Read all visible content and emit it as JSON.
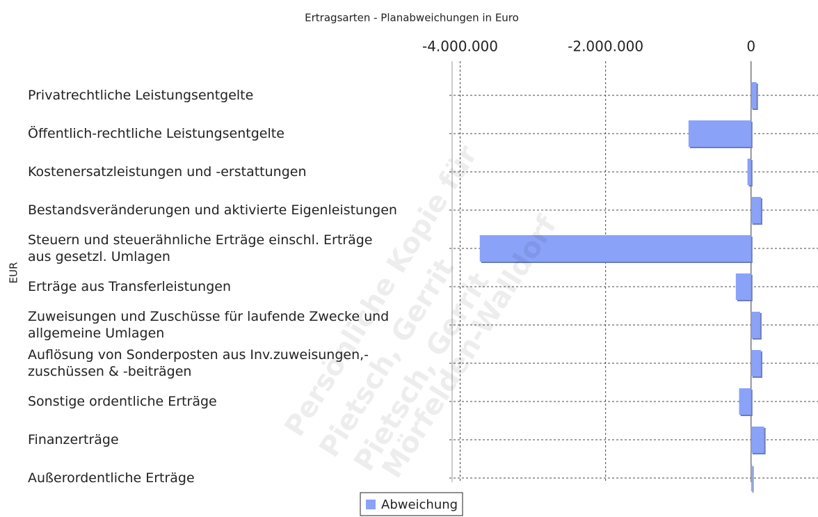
{
  "chart_data": {
    "type": "barh",
    "title": "Ertragsarten - Planabweichungen in Euro",
    "ylabel": "EUR",
    "categories": [
      "Privatrechtliche Leistungsentgelte",
      "Öffentlich-rechtliche Leistungsentgelte",
      "Kostenersatzleistungen und -erstattungen",
      "Bestandsveränderungen und aktivierte Eigenleistungen",
      "Steuern und steuerähnliche Erträge einschl. Erträge\n aus gesetzl. Umlagen",
      "Erträge aus Transferleistungen",
      "Zuweisungen und Zuschüsse für laufende Zwecke und\n allgemeine Umlagen",
      "Auflösung von Sonderposten aus Inv.zuweisungen,-\n zuschüssen & -beiträgen",
      "Sonstige ordentliche Erträge",
      "Finanzerträge",
      "Außerordentliche Erträge"
    ],
    "series": [
      {
        "name": "Abweichung",
        "color": "#8aa2f8",
        "values": [
          75000,
          -860000,
          -50000,
          135000,
          -3730000,
          -210000,
          125000,
          135000,
          -165000,
          180000,
          15000
        ]
      }
    ],
    "xlim": [
      -4110000,
      920000
    ],
    "xticks": [
      {
        "value": -4000000,
        "label": "-4.000.000"
      },
      {
        "value": -2000000,
        "label": "-2.000.000"
      },
      0
    ],
    "grid": true,
    "legend": "bottom",
    "watermark": [
      "Persönliche Kopie für",
      "Pietsch, Gerrit",
      "Pietsch, Gerrit",
      "Mörfelden-Walldorf"
    ]
  }
}
